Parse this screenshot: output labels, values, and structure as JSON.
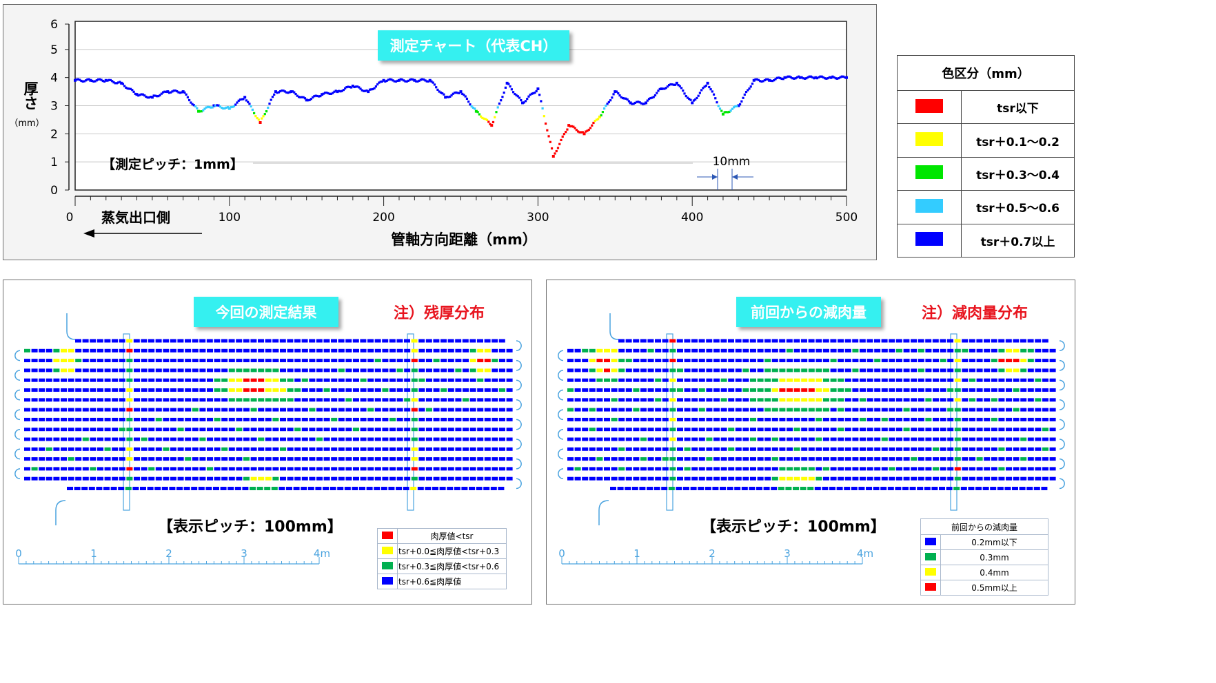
{
  "top_chart": {
    "title": "測定チャート（代表CH）",
    "pitch_note": "【測定ピッチ：1mm】",
    "ylabel_main": "厚さ",
    "ylabel_unit": "（mm）",
    "xlabel": "管軸方向距離（mm）",
    "direction_label": "蒸気出口側",
    "dim_label": "10mm",
    "x_ticks": [
      "0",
      "100",
      "200",
      "300",
      "400",
      "500"
    ],
    "y_ticks": [
      "0",
      "1",
      "2",
      "3",
      "4",
      "5",
      "6"
    ]
  },
  "color_legend": {
    "title": "色区分（mm）",
    "items": [
      {
        "label": "tsr以下",
        "color": "#ff0000"
      },
      {
        "label": "tsr＋0.1～0.2",
        "color": "#ffff00"
      },
      {
        "label": "tsr＋0.3～0.4",
        "color": "#00e600"
      },
      {
        "label": "tsr＋0.5～0.6",
        "color": "#33ccff"
      },
      {
        "label": "tsr＋0.7以上",
        "color": "#0000ff"
      }
    ]
  },
  "left_panel": {
    "title": "今回の測定結果",
    "note": "注）残厚分布",
    "pitch": "【表示ピッチ：100mm】",
    "scale_labels": [
      "0",
      "1",
      "2",
      "3",
      "4m"
    ],
    "legend": [
      {
        "label": "肉厚値<tsr",
        "color": "#ff0000"
      },
      {
        "label": "tsr+0.0≦肉厚値<tsr+0.3",
        "color": "#ffff00"
      },
      {
        "label": "tsr+0.3≦肉厚値<tsr+0.6",
        "color": "#00b050"
      },
      {
        "label": "tsr+0.6≦肉厚値",
        "color": "#0000ff"
      }
    ]
  },
  "right_panel": {
    "title": "前回からの減肉量",
    "note": "注）減肉量分布",
    "pitch": "【表示ピッチ：100mm】",
    "scale_labels": [
      "0",
      "1",
      "2",
      "3",
      "4m"
    ],
    "legend_title": "前回からの減肉量",
    "legend": [
      {
        "label": "0.2mm以下",
        "color": "#0000ff"
      },
      {
        "label": "0.3mm",
        "color": "#00b050"
      },
      {
        "label": "0.4mm",
        "color": "#ffff00"
      },
      {
        "label": "0.5mm以上",
        "color": "#ff0000"
      }
    ]
  },
  "chart_data": {
    "type": "scatter",
    "title": "測定チャート（代表CH）",
    "xlabel": "管軸方向距離（mm）",
    "ylabel": "厚さ（mm）",
    "xlim": [
      0,
      500
    ],
    "ylim": [
      0,
      6
    ],
    "grid": true,
    "color_rule": "thickness classes per 色区分 legend",
    "x": [
      0,
      10,
      20,
      30,
      40,
      50,
      60,
      70,
      80,
      90,
      100,
      110,
      120,
      130,
      140,
      150,
      160,
      170,
      180,
      190,
      200,
      210,
      220,
      230,
      240,
      250,
      260,
      270,
      280,
      290,
      300,
      310,
      320,
      330,
      340,
      350,
      360,
      370,
      380,
      390,
      400,
      410,
      420,
      430,
      440,
      450,
      460,
      470,
      480,
      490,
      500
    ],
    "y": [
      3.9,
      3.9,
      3.9,
      3.8,
      3.4,
      3.3,
      3.5,
      3.5,
      2.8,
      3.0,
      2.9,
      3.3,
      2.4,
      3.5,
      3.5,
      3.2,
      3.4,
      3.5,
      3.7,
      3.5,
      3.9,
      3.9,
      3.9,
      3.9,
      3.3,
      3.5,
      2.8,
      2.3,
      3.8,
      3.1,
      3.6,
      1.2,
      2.3,
      2.0,
      2.6,
      3.5,
      3.1,
      3.1,
      3.6,
      3.8,
      3.1,
      3.8,
      2.7,
      3.0,
      3.9,
      3.9,
      4.0,
      4.0,
      4.0,
      4.0,
      4.0
    ]
  }
}
